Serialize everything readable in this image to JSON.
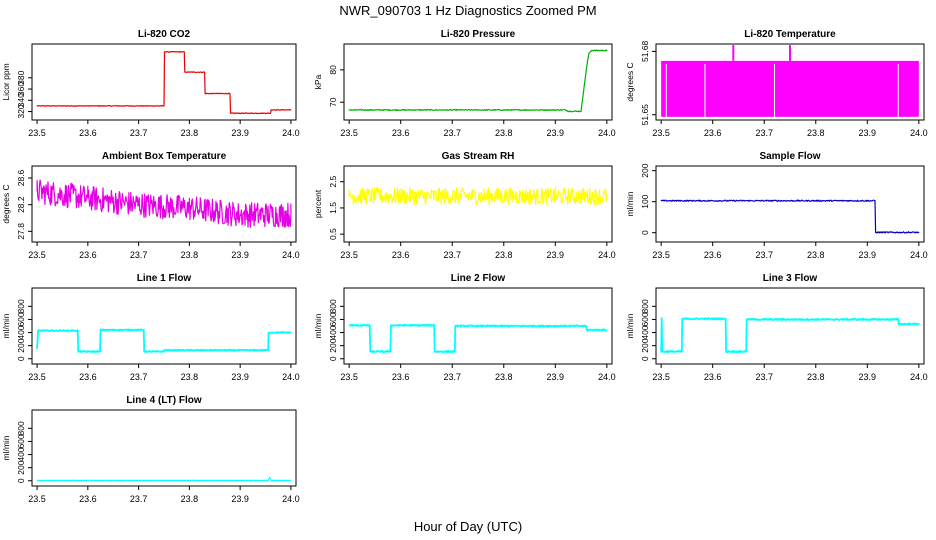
{
  "figure": {
    "title": "NWR_090703  1 Hz Diagnostics Zoomed PM",
    "xlabel": "Hour of Day (UTC)"
  },
  "chart_data": [
    {
      "id": "co2",
      "type": "line",
      "title": "Li-820 CO2",
      "ylabel": "Licor ppm",
      "color": "#e60000",
      "x_ticks": [
        "23.5",
        "23.6",
        "23.7",
        "23.8",
        "23.9",
        "24.0"
      ],
      "x_tick_values": [
        23.5,
        23.6,
        23.7,
        23.8,
        23.9,
        24.0
      ],
      "xlim": [
        23.49,
        24.01
      ],
      "ylim": [
        305,
        440
      ],
      "y_ticks": [
        "320",
        "340",
        "360",
        "380"
      ],
      "y_tick_values": [
        320,
        340,
        360,
        380
      ],
      "noise": 0.6,
      "x": [
        23.5,
        23.75,
        23.751,
        23.79,
        23.791,
        23.83,
        23.831,
        23.88,
        23.881,
        23.96,
        23.961,
        24.0
      ],
      "y": [
        330,
        330,
        426,
        426,
        390,
        390,
        352,
        352,
        317,
        317,
        323,
        323
      ]
    },
    {
      "id": "pressure",
      "type": "line",
      "title": "Li-820 Pressure",
      "ylabel": "kPa",
      "color": "#00b000",
      "x_ticks": [
        "23.5",
        "23.6",
        "23.7",
        "23.8",
        "23.9",
        "24.0"
      ],
      "x_tick_values": [
        23.5,
        23.6,
        23.7,
        23.8,
        23.9,
        24.0
      ],
      "xlim": [
        23.49,
        24.01
      ],
      "ylim": [
        64.5,
        88
      ],
      "y_ticks": [
        "70",
        "80"
      ],
      "y_tick_values": [
        70,
        80
      ],
      "noise": 0.15,
      "x": [
        23.5,
        23.92,
        23.925,
        23.95,
        23.96,
        23.965,
        23.97,
        24.0
      ],
      "y": [
        67.6,
        67.6,
        67.2,
        67.2,
        80,
        85,
        86,
        86
      ]
    },
    {
      "id": "temperature",
      "type": "band",
      "title": "Li-820 Temperature",
      "ylabel": "degrees C",
      "color": "#ff00ff",
      "x_ticks": [
        "23.5",
        "23.6",
        "23.7",
        "23.8",
        "23.9",
        "24.0"
      ],
      "x_tick_values": [
        23.5,
        23.6,
        23.7,
        23.8,
        23.9,
        24.0
      ],
      "xlim": [
        23.49,
        24.01
      ],
      "ylim": [
        51.6475,
        51.6835
      ],
      "y_ticks": [
        "51.65",
        "51.68"
      ],
      "y_tick_values": [
        51.65,
        51.68
      ],
      "band": [
        23.5,
        24.0,
        51.649,
        51.6755
      ],
      "spikes_x": [
        23.64,
        23.75
      ],
      "spike_top": 51.683,
      "gaps_x": [
        23.51,
        23.585,
        23.72,
        23.96
      ]
    },
    {
      "id": "ambient",
      "type": "line",
      "title": "Ambient Box Temperature",
      "ylabel": "degrees C",
      "color": "#e600e6",
      "x_ticks": [
        "23.5",
        "23.6",
        "23.7",
        "23.8",
        "23.9",
        "24.0"
      ],
      "x_tick_values": [
        23.5,
        23.6,
        23.7,
        23.8,
        23.9,
        24.0
      ],
      "xlim": [
        23.49,
        24.01
      ],
      "ylim": [
        27.64,
        28.78
      ],
      "y_ticks": [
        "27.8",
        "28.2",
        "28.6"
      ],
      "y_tick_values": [
        27.8,
        28.2,
        28.6
      ],
      "noise": 0.19,
      "x": [
        23.5,
        23.6,
        23.7,
        23.8,
        23.9,
        24.0
      ],
      "y": [
        28.4,
        28.3,
        28.2,
        28.15,
        28.05,
        28.05
      ]
    },
    {
      "id": "rh",
      "type": "line",
      "title": "Gas Stream RH",
      "ylabel": "percent",
      "color": "#ffff00",
      "x_ticks": [
        "23.5",
        "23.6",
        "23.7",
        "23.8",
        "23.9",
        "24.0"
      ],
      "x_tick_values": [
        23.5,
        23.6,
        23.7,
        23.8,
        23.9,
        24.0
      ],
      "xlim": [
        23.49,
        24.01
      ],
      "ylim": [
        0.2,
        3.1
      ],
      "y_ticks": [
        "0.5",
        "1.5",
        "2.5"
      ],
      "y_tick_values": [
        0.5,
        1.5,
        2.5
      ],
      "noise": 0.32,
      "x": [
        23.5,
        24.0
      ],
      "y": [
        1.95,
        1.95
      ]
    },
    {
      "id": "sample_flow",
      "type": "line",
      "title": "Sample Flow",
      "ylabel": "ml/min",
      "color": "#0000c8",
      "x_ticks": [
        "23.5",
        "23.6",
        "23.7",
        "23.8",
        "23.9",
        "24.0"
      ],
      "x_tick_values": [
        23.5,
        23.6,
        23.7,
        23.8,
        23.9,
        24.0
      ],
      "xlim": [
        23.49,
        24.01
      ],
      "ylim": [
        -30,
        215
      ],
      "y_ticks": [
        "0",
        "100",
        "200"
      ],
      "y_tick_values": [
        0,
        100,
        200
      ],
      "noise": 2.0,
      "x": [
        23.5,
        23.915,
        23.916,
        24.0
      ],
      "y": [
        103,
        103,
        1,
        1
      ]
    },
    {
      "id": "line1",
      "type": "line",
      "title": "Line 1 Flow",
      "ylabel": "ml/min",
      "color": "#00ffff",
      "x_ticks": [
        "23.5",
        "23.6",
        "23.7",
        "23.8",
        "23.9",
        "24.0"
      ],
      "x_tick_values": [
        23.5,
        23.6,
        23.7,
        23.8,
        23.9,
        24.0
      ],
      "xlim": [
        23.49,
        24.01
      ],
      "ylim": [
        -80,
        1080
      ],
      "y_ticks": [
        "0",
        "200",
        "400",
        "600",
        "800"
      ],
      "y_tick_values": [
        0,
        200,
        400,
        600,
        800
      ],
      "noise": 8,
      "x": [
        23.5,
        23.502,
        23.503,
        23.58,
        23.581,
        23.624,
        23.625,
        23.71,
        23.711,
        23.75,
        23.751,
        23.955,
        23.956,
        24.0
      ],
      "y": [
        150,
        430,
        430,
        430,
        110,
        110,
        440,
        440,
        110,
        110,
        130,
        130,
        400,
        400
      ]
    },
    {
      "id": "line2",
      "type": "line",
      "title": "Line 2 Flow",
      "ylabel": "ml/min",
      "color": "#00ffff",
      "x_ticks": [
        "23.5",
        "23.6",
        "23.7",
        "23.8",
        "23.9",
        "24.0"
      ],
      "x_tick_values": [
        23.5,
        23.6,
        23.7,
        23.8,
        23.9,
        24.0
      ],
      "xlim": [
        23.49,
        24.01
      ],
      "ylim": [
        -80,
        1080
      ],
      "y_ticks": [
        "0",
        "200",
        "400",
        "600",
        "800"
      ],
      "y_tick_values": [
        0,
        200,
        400,
        600,
        800
      ],
      "noise": 10,
      "x": [
        23.5,
        23.54,
        23.541,
        23.58,
        23.581,
        23.665,
        23.666,
        23.705,
        23.706,
        23.96,
        23.961,
        24.0
      ],
      "y": [
        510,
        510,
        110,
        110,
        510,
        510,
        110,
        110,
        500,
        500,
        440,
        440
      ]
    },
    {
      "id": "line3",
      "type": "line",
      "title": "Line 3 Flow",
      "ylabel": "ml/min",
      "color": "#00ffff",
      "x_ticks": [
        "23.5",
        "23.6",
        "23.7",
        "23.8",
        "23.9",
        "24.0"
      ],
      "x_tick_values": [
        23.5,
        23.6,
        23.7,
        23.8,
        23.9,
        24.0
      ],
      "xlim": [
        23.49,
        24.01
      ],
      "ylim": [
        -80,
        1080
      ],
      "y_ticks": [
        "0",
        "200",
        "400",
        "600",
        "800"
      ],
      "y_tick_values": [
        0,
        200,
        400,
        600,
        800
      ],
      "noise": 10,
      "x": [
        23.5,
        23.501,
        23.502,
        23.54,
        23.541,
        23.625,
        23.626,
        23.665,
        23.666,
        23.96,
        23.961,
        24.0
      ],
      "y": [
        110,
        620,
        110,
        110,
        610,
        610,
        110,
        110,
        600,
        600,
        530,
        530
      ]
    },
    {
      "id": "line4",
      "type": "line",
      "title": "Line 4 (LT) Flow",
      "ylabel": "ml/min",
      "color": "#00ffff",
      "x_ticks": [
        "23.5",
        "23.6",
        "23.7",
        "23.8",
        "23.9",
        "24.0"
      ],
      "x_tick_values": [
        23.5,
        23.6,
        23.7,
        23.8,
        23.9,
        24.0
      ],
      "xlim": [
        23.49,
        24.01
      ],
      "ylim": [
        -80,
        1080
      ],
      "y_ticks": [
        "0",
        "200",
        "400",
        "600",
        "800"
      ],
      "y_tick_values": [
        0,
        200,
        400,
        600,
        800
      ],
      "noise": 2,
      "x": [
        23.5,
        23.955,
        23.958,
        23.961,
        24.0
      ],
      "y": [
        5,
        5,
        50,
        5,
        5
      ]
    }
  ]
}
